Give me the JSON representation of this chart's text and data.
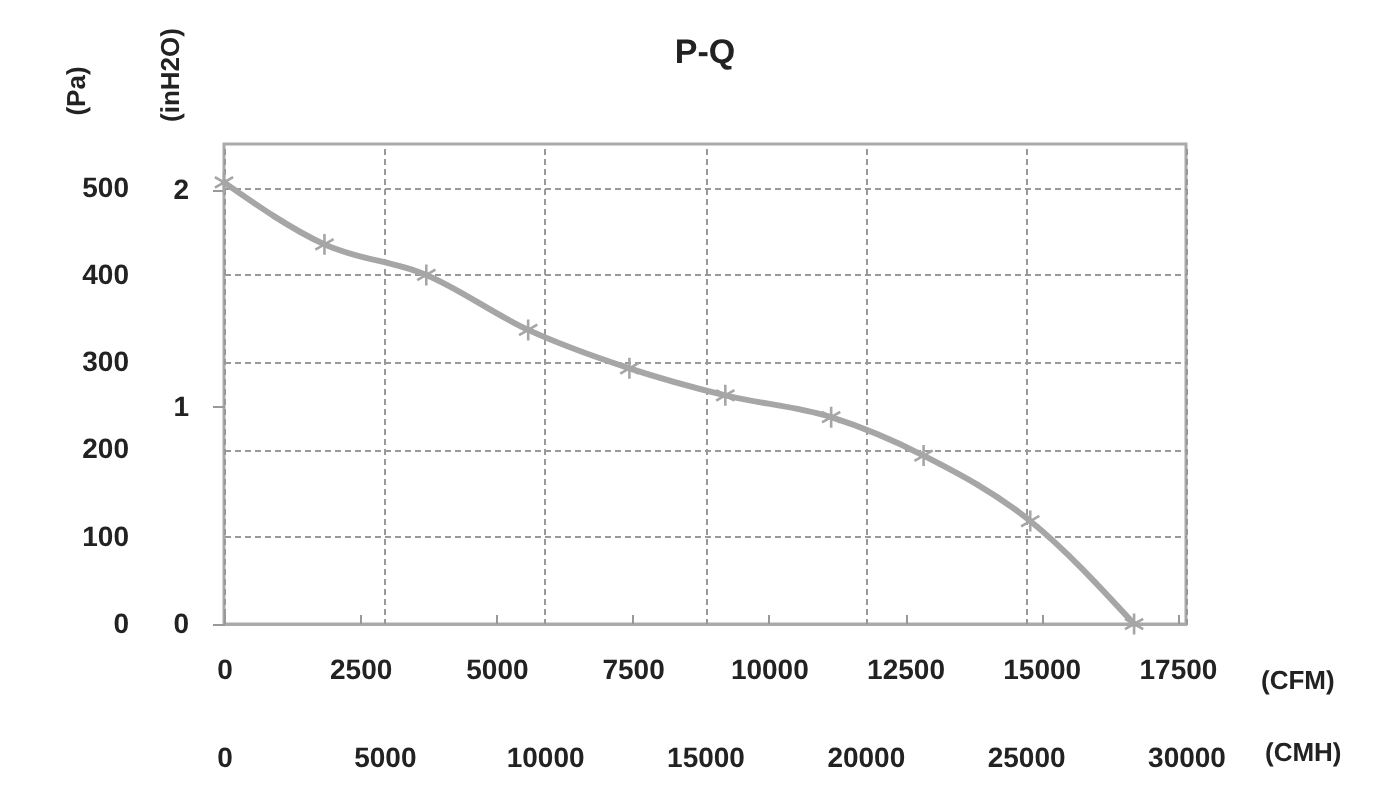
{
  "chart_data": {
    "type": "line",
    "title": "P-Q",
    "xlabel": "(CFM)",
    "x2label": "(CMH)",
    "ylabel": "(Pa)",
    "y2label": "(inH2O)",
    "x": [
      0,
      1844,
      3713,
      5583,
      7441,
      9201,
      11144,
      12841,
      14798,
      16704
    ],
    "xlim": [
      0,
      17657
    ],
    "xticks": [
      0,
      2500,
      5000,
      7500,
      10000,
      12500,
      15000,
      17500
    ],
    "x2lim": [
      0,
      30000
    ],
    "x2ticks": [
      0,
      5000,
      10000,
      15000,
      20000,
      25000,
      30000
    ],
    "ylim": [
      0,
      550
    ],
    "yticks": [
      0,
      100,
      200,
      300,
      400,
      500
    ],
    "y2lim": [
      0,
      2.21
    ],
    "y2ticks": [
      0,
      1,
      2
    ],
    "series": [
      {
        "color": "#a6a6a6",
        "values": [
          506,
          435,
          400,
          337,
          293,
          262,
          237,
          193,
          118,
          0
        ]
      }
    ],
    "grid": true,
    "marker": "cross",
    "line_style": "solid"
  }
}
